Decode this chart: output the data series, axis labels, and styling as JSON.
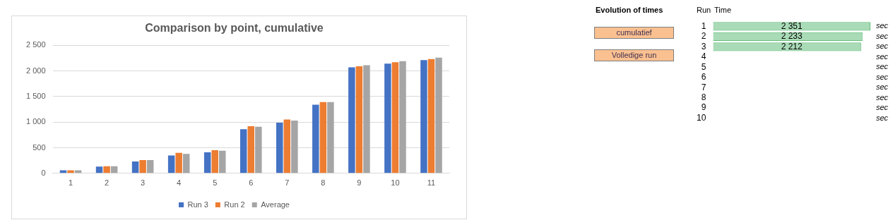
{
  "chart_data": [
    {
      "type": "bar",
      "title": "Comparison by point, cumulative",
      "categories": [
        "1",
        "2",
        "3",
        "4",
        "5",
        "6",
        "7",
        "8",
        "9",
        "10",
        "11"
      ],
      "series": [
        {
          "name": "Run 3",
          "color": "#4472c4",
          "values": [
            60,
            130,
            230,
            350,
            410,
            860,
            990,
            1340,
            2070,
            2140,
            2210
          ]
        },
        {
          "name": "Run 2",
          "color": "#ed7d31",
          "values": [
            60,
            140,
            260,
            400,
            450,
            920,
            1050,
            1390,
            2090,
            2170,
            2230
          ]
        },
        {
          "name": "Average",
          "color": "#a5a5a5",
          "values": [
            60,
            140,
            260,
            380,
            440,
            910,
            1030,
            1390,
            2110,
            2190,
            2260
          ]
        }
      ],
      "ylim": [
        0,
        2500
      ],
      "yticks": [
        0,
        500,
        {
          "value": 1000,
          "label": "1 000"
        },
        {
          "value": 1500,
          "label": "1 500"
        },
        {
          "value": 2000,
          "label": "2 000"
        },
        {
          "value": 2500,
          "label": "2 500"
        }
      ],
      "grid": "y",
      "legend": "bottom"
    },
    {
      "type": "other",
      "title": "Evolution of times",
      "annotations": [
        "cumulatief",
        "Volledige run"
      ]
    },
    {
      "type": "bar",
      "orientation": "horizontal",
      "xlabel": "Time",
      "ylabel": "Run",
      "categories": [
        "1",
        "2",
        "3",
        "4",
        "5",
        "6",
        "7",
        "8",
        "9",
        "10"
      ],
      "values": [
        2351,
        2233,
        2212,
        null,
        null,
        null,
        null,
        null,
        null,
        null
      ],
      "color": "#63be7b",
      "data_labels": true,
      "value_labels": [
        "2 351",
        "2 233",
        "2 212",
        null,
        null,
        null,
        null,
        null,
        null,
        null
      ],
      "grid": false,
      "legend": false,
      "annotations": [
        "sec",
        "sec",
        "sec",
        "sec",
        "sec",
        "sec",
        "sec",
        "sec",
        "sec",
        "sec"
      ]
    }
  ]
}
